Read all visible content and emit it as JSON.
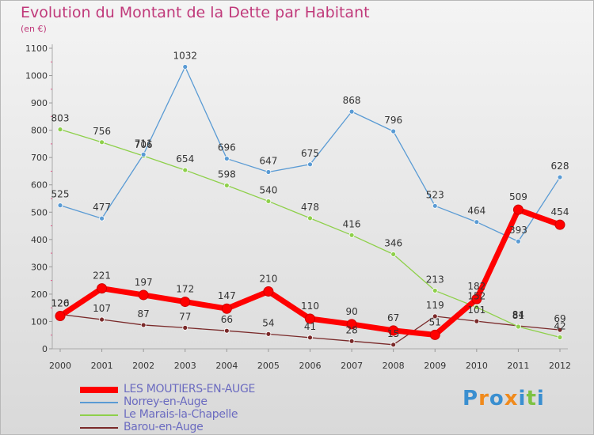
{
  "title": "Evolution du Montant de la Dette par Habitant",
  "unit_label": "(en €)",
  "logo": {
    "letters": [
      "P",
      "r",
      "o",
      "x",
      "i",
      "t",
      "i"
    ],
    "colors": [
      "#3a8fd0",
      "#f08a1c",
      "#3a8fd0",
      "#f08a1c",
      "#3a8fd0",
      "#7dc243",
      "#3a8fd0"
    ]
  },
  "chart_data": {
    "type": "line",
    "title": "Evolution du Montant de la Dette par Habitant",
    "ylabel": "(en €)",
    "x": [
      "2000",
      "2001",
      "2002",
      "2003",
      "2004",
      "2005",
      "2006",
      "2007",
      "2008",
      "2009",
      "2010",
      "2011",
      "2012"
    ],
    "ylim": [
      0,
      1100
    ],
    "yticks": [
      "0",
      "100",
      "200",
      "300",
      "400",
      "500",
      "600",
      "700",
      "800",
      "900",
      "1000",
      "1100"
    ],
    "grid": false,
    "legend_position": "bottom-left",
    "series": [
      {
        "name": "LES MOUTIERS-EN-AUGE",
        "color": "#ff0000",
        "values": [
          120,
          221,
          197,
          172,
          147,
          210,
          110,
          90,
          67,
          51,
          182,
          509,
          454
        ],
        "labels": [
          "120",
          "221",
          "197",
          "172",
          "147",
          "210",
          "110",
          "90",
          "67",
          "51",
          "182",
          "509",
          "454"
        ]
      },
      {
        "name": "Norrey-en-Auge",
        "color": "#5a9bd4",
        "values": [
          525,
          477,
          711,
          1032,
          696,
          647,
          675,
          868,
          796,
          523,
          464,
          393,
          628
        ],
        "labels": [
          "525",
          "477",
          "711",
          "1032",
          "696",
          "647",
          "675",
          "868",
          "796",
          "523",
          "464",
          "393",
          "628"
        ]
      },
      {
        "name": "Le Marais-la-Chapelle",
        "color": "#8ed04a",
        "values": [
          803,
          756,
          706,
          654,
          598,
          540,
          478,
          416,
          346,
          213,
          152,
          81,
          42
        ],
        "labels": [
          "803",
          "756",
          "706",
          "654",
          "598",
          "540",
          "478",
          "416",
          "346",
          "213",
          "152",
          "81",
          "42"
        ]
      },
      {
        "name": "Barou-en-Auge",
        "color": "#7a2a2a",
        "values": [
          126,
          107,
          87,
          77,
          66,
          54,
          41,
          28,
          15,
          119,
          101,
          84,
          69
        ],
        "labels": [
          "126",
          "107",
          "87",
          "77",
          "66",
          "54",
          "41",
          "28",
          "15",
          "119",
          "101",
          "84",
          "69"
        ]
      }
    ]
  }
}
